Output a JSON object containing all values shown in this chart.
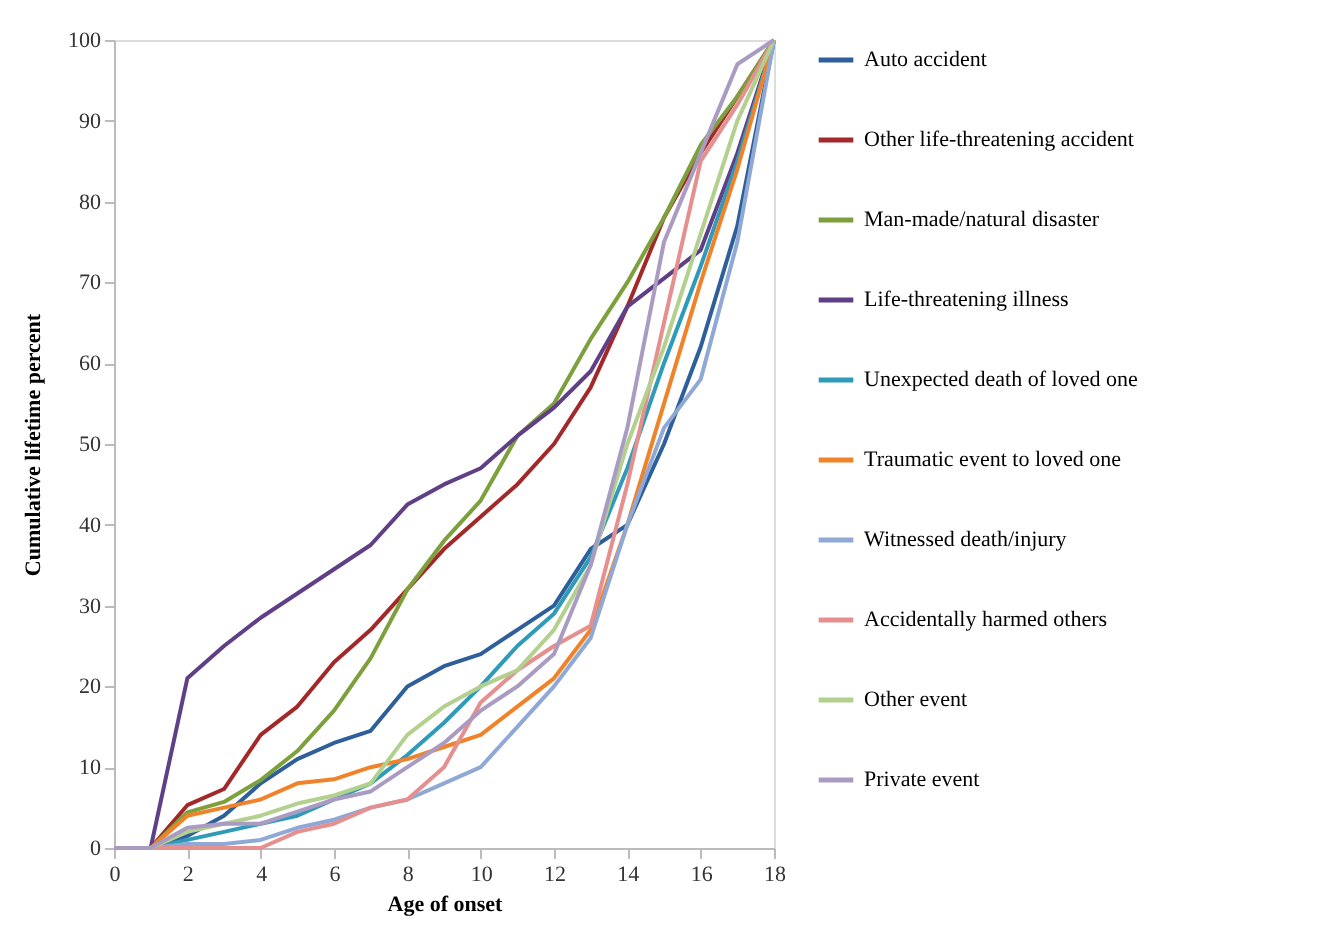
{
  "chart_data": {
    "type": "line",
    "xlabel": "Age of onset",
    "ylabel": "Cumulative lifetime percent",
    "x": [
      0,
      1,
      2,
      3,
      4,
      5,
      6,
      7,
      8,
      9,
      10,
      11,
      12,
      13,
      14,
      15,
      16,
      17,
      18
    ],
    "xlim": [
      0,
      18
    ],
    "xticks": [
      0,
      2,
      4,
      6,
      8,
      10,
      12,
      14,
      16,
      18
    ],
    "ylim": [
      0,
      100
    ],
    "yticks": [
      0,
      10,
      20,
      30,
      40,
      50,
      60,
      70,
      80,
      90,
      100
    ],
    "grid": false,
    "legend": "right",
    "marker": "none",
    "line_style": "solid",
    "series": [
      {
        "name": "Auto accident",
        "color": "#2e5f9a",
        "values": [
          0,
          0,
          1.5,
          4,
          8,
          11,
          13,
          14.5,
          20,
          22.5,
          24,
          27,
          30,
          37,
          40,
          50,
          62,
          77,
          100
        ]
      },
      {
        "name": "Other life-threatening accident",
        "color": "#a3282a",
        "values": [
          0,
          0,
          5.3,
          7.3,
          14,
          17.5,
          23,
          27,
          32,
          37,
          41,
          45,
          50,
          57,
          67,
          78,
          86,
          93,
          100
        ]
      },
      {
        "name": "Man-made/natural disaster",
        "color": "#7ea03c",
        "values": [
          0,
          0,
          4.4,
          5.7,
          8.4,
          12,
          17,
          23.5,
          32,
          38,
          43,
          51,
          55,
          63,
          70,
          78,
          87,
          93,
          100
        ]
      },
      {
        "name": "Life-threatening illness",
        "color": "#5f3f86",
        "values": [
          0,
          0,
          21,
          25,
          28.5,
          31.5,
          34.5,
          37.5,
          42.5,
          45,
          47,
          51,
          54.5,
          59,
          67,
          70.5,
          74,
          86,
          100
        ]
      },
      {
        "name": "Unexpected death of loved one",
        "color": "#2f9bb8",
        "values": [
          0,
          0,
          1,
          2,
          3,
          4,
          6,
          8,
          11.5,
          15.5,
          20,
          25,
          29,
          36,
          47,
          60,
          72,
          85,
          100
        ]
      },
      {
        "name": "Traumatic event to loved one",
        "color": "#f0832a",
        "values": [
          0,
          0,
          4,
          5,
          6,
          8,
          8.5,
          10,
          11,
          12.5,
          14,
          17.5,
          21,
          27,
          40,
          55,
          70,
          84,
          100
        ]
      },
      {
        "name": "Witnessed death/injury",
        "color": "#8fa8d6",
        "values": [
          0,
          0,
          0.5,
          0.5,
          1,
          2.5,
          3.5,
          5,
          6,
          8,
          10,
          15,
          20,
          26,
          40,
          52,
          58,
          75,
          100
        ]
      },
      {
        "name": "Accidentally harmed others",
        "color": "#e5908e",
        "values": [
          0,
          0,
          0,
          0,
          0,
          2,
          3,
          5,
          6,
          10,
          18,
          22,
          25,
          27.5,
          45,
          65,
          85,
          92,
          100
        ]
      },
      {
        "name": "Other event",
        "color": "#b3d08f",
        "values": [
          0,
          0,
          2,
          3,
          4,
          5.5,
          6.5,
          8,
          14,
          17.5,
          20,
          22,
          27,
          35,
          50,
          62,
          76,
          90,
          100
        ]
      },
      {
        "name": "Private event",
        "color": "#a99bc2",
        "values": [
          0,
          0,
          2.5,
          3,
          3,
          4.5,
          6,
          7,
          10,
          13,
          17,
          20,
          24,
          35,
          52,
          75,
          86,
          97,
          100
        ]
      }
    ]
  }
}
